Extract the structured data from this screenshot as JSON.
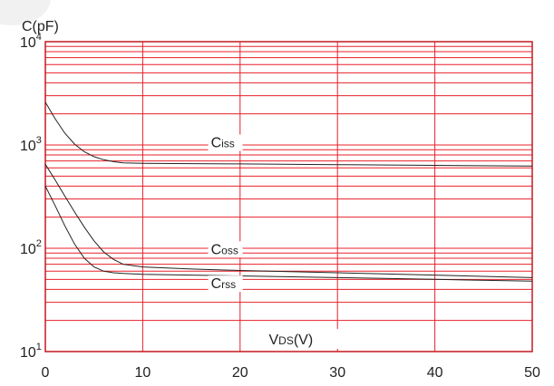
{
  "chart_data": {
    "type": "line",
    "title": "",
    "ylabel": "C(pF)",
    "xlabel_main": "V",
    "xlabel_sub": "DS",
    "xlabel_unit": "(V)",
    "yscale": "log",
    "xlim": [
      0,
      50
    ],
    "ylim": [
      10,
      10000
    ],
    "x_ticks": [
      0,
      10,
      20,
      30,
      40,
      50
    ],
    "y_ticks": [
      {
        "base": "10",
        "exp": "1"
      },
      {
        "base": "10",
        "exp": "2"
      },
      {
        "base": "10",
        "exp": "3"
      },
      {
        "base": "10",
        "exp": "4"
      }
    ],
    "grid": true,
    "series": [
      {
        "name": "Ciss",
        "label_main": "C",
        "label_sub": "iss",
        "label_at": {
          "x": 17,
          "y": 950
        },
        "x": [
          0,
          1,
          2,
          3,
          4,
          5,
          6,
          7,
          8,
          10,
          15,
          20,
          30,
          40,
          50
        ],
        "y": [
          2600,
          1800,
          1300,
          1020,
          860,
          770,
          720,
          690,
          670,
          665,
          660,
          655,
          645,
          635,
          625
        ]
      },
      {
        "name": "Coss",
        "label_main": "C",
        "label_sub": "oss",
        "label_at": {
          "x": 17,
          "y": 88
        },
        "x": [
          0,
          1,
          2,
          3,
          4,
          5,
          6,
          7,
          8,
          10,
          15,
          20,
          30,
          40,
          50
        ],
        "y": [
          650,
          460,
          320,
          225,
          160,
          118,
          92,
          78,
          70,
          66,
          63,
          61,
          58,
          55,
          52
        ]
      },
      {
        "name": "Crss",
        "label_main": "C",
        "label_sub": "rss",
        "label_at": {
          "x": 17,
          "y": 41
        },
        "x": [
          0,
          1,
          2,
          3,
          4,
          5,
          6,
          7,
          8,
          10,
          15,
          20,
          30,
          40,
          50
        ],
        "y": [
          400,
          260,
          165,
          110,
          80,
          66,
          60,
          58,
          57,
          56,
          55,
          54,
          52,
          50,
          48
        ]
      }
    ]
  },
  "colors": {
    "grid": "#e8202a",
    "axis": "#c41820",
    "curve": "#222222",
    "text": "#222222"
  }
}
